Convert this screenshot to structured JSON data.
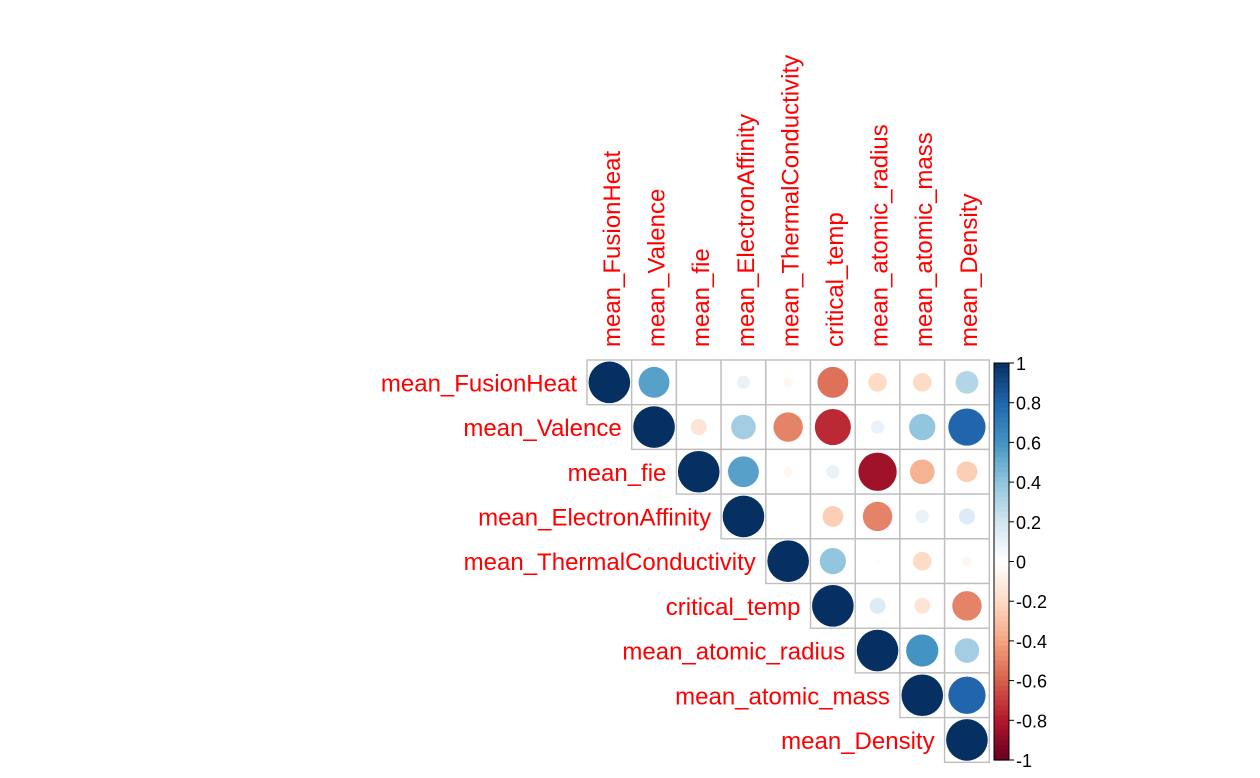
{
  "chart_data": {
    "type": "heatmap",
    "subtype": "correlation-circle-upper-triangle",
    "variables": [
      "mean_FusionHeat",
      "mean_Valence",
      "mean_fie",
      "mean_ElectronAffinity",
      "mean_ThermalConductivity",
      "critical_temp",
      "mean_atomic_radius",
      "mean_atomic_mass",
      "mean_Density"
    ],
    "matrix": [
      [
        1.0,
        0.55,
        0.0,
        0.1,
        -0.05,
        -0.55,
        -0.2,
        -0.2,
        0.3
      ],
      [
        0.55,
        1.0,
        -0.15,
        0.35,
        -0.5,
        -0.75,
        0.1,
        0.4,
        0.8
      ],
      [
        0.0,
        -0.15,
        1.0,
        0.55,
        -0.05,
        0.1,
        -0.85,
        -0.35,
        -0.25
      ],
      [
        0.1,
        0.35,
        0.55,
        1.0,
        0.0,
        -0.25,
        -0.5,
        0.1,
        0.15
      ],
      [
        -0.05,
        -0.5,
        -0.05,
        0.0,
        1.0,
        0.4,
        -0.02,
        -0.2,
        -0.05
      ],
      [
        -0.55,
        -0.75,
        0.1,
        -0.25,
        0.4,
        1.0,
        0.15,
        -0.15,
        -0.5
      ],
      [
        -0.2,
        0.1,
        -0.85,
        -0.5,
        -0.02,
        0.15,
        1.0,
        0.6,
        0.35
      ],
      [
        -0.2,
        0.4,
        -0.35,
        0.1,
        -0.2,
        -0.15,
        0.6,
        1.0,
        0.8
      ],
      [
        0.3,
        0.8,
        -0.25,
        0.15,
        -0.05,
        -0.5,
        0.35,
        0.8,
        1.0
      ]
    ],
    "triangle": "upper",
    "colorbar": {
      "min": -1,
      "max": 1,
      "tick_labels": [
        "1",
        "0.8",
        "0.6",
        "0.4",
        "0.2",
        "0",
        "-0.2",
        "-0.4",
        "-0.6",
        "-0.8",
        "-1"
      ]
    },
    "colors": {
      "label": "#ff0000",
      "grid": "#bebebe",
      "negative_end": "#67001f",
      "positive_end": "#053061"
    }
  }
}
